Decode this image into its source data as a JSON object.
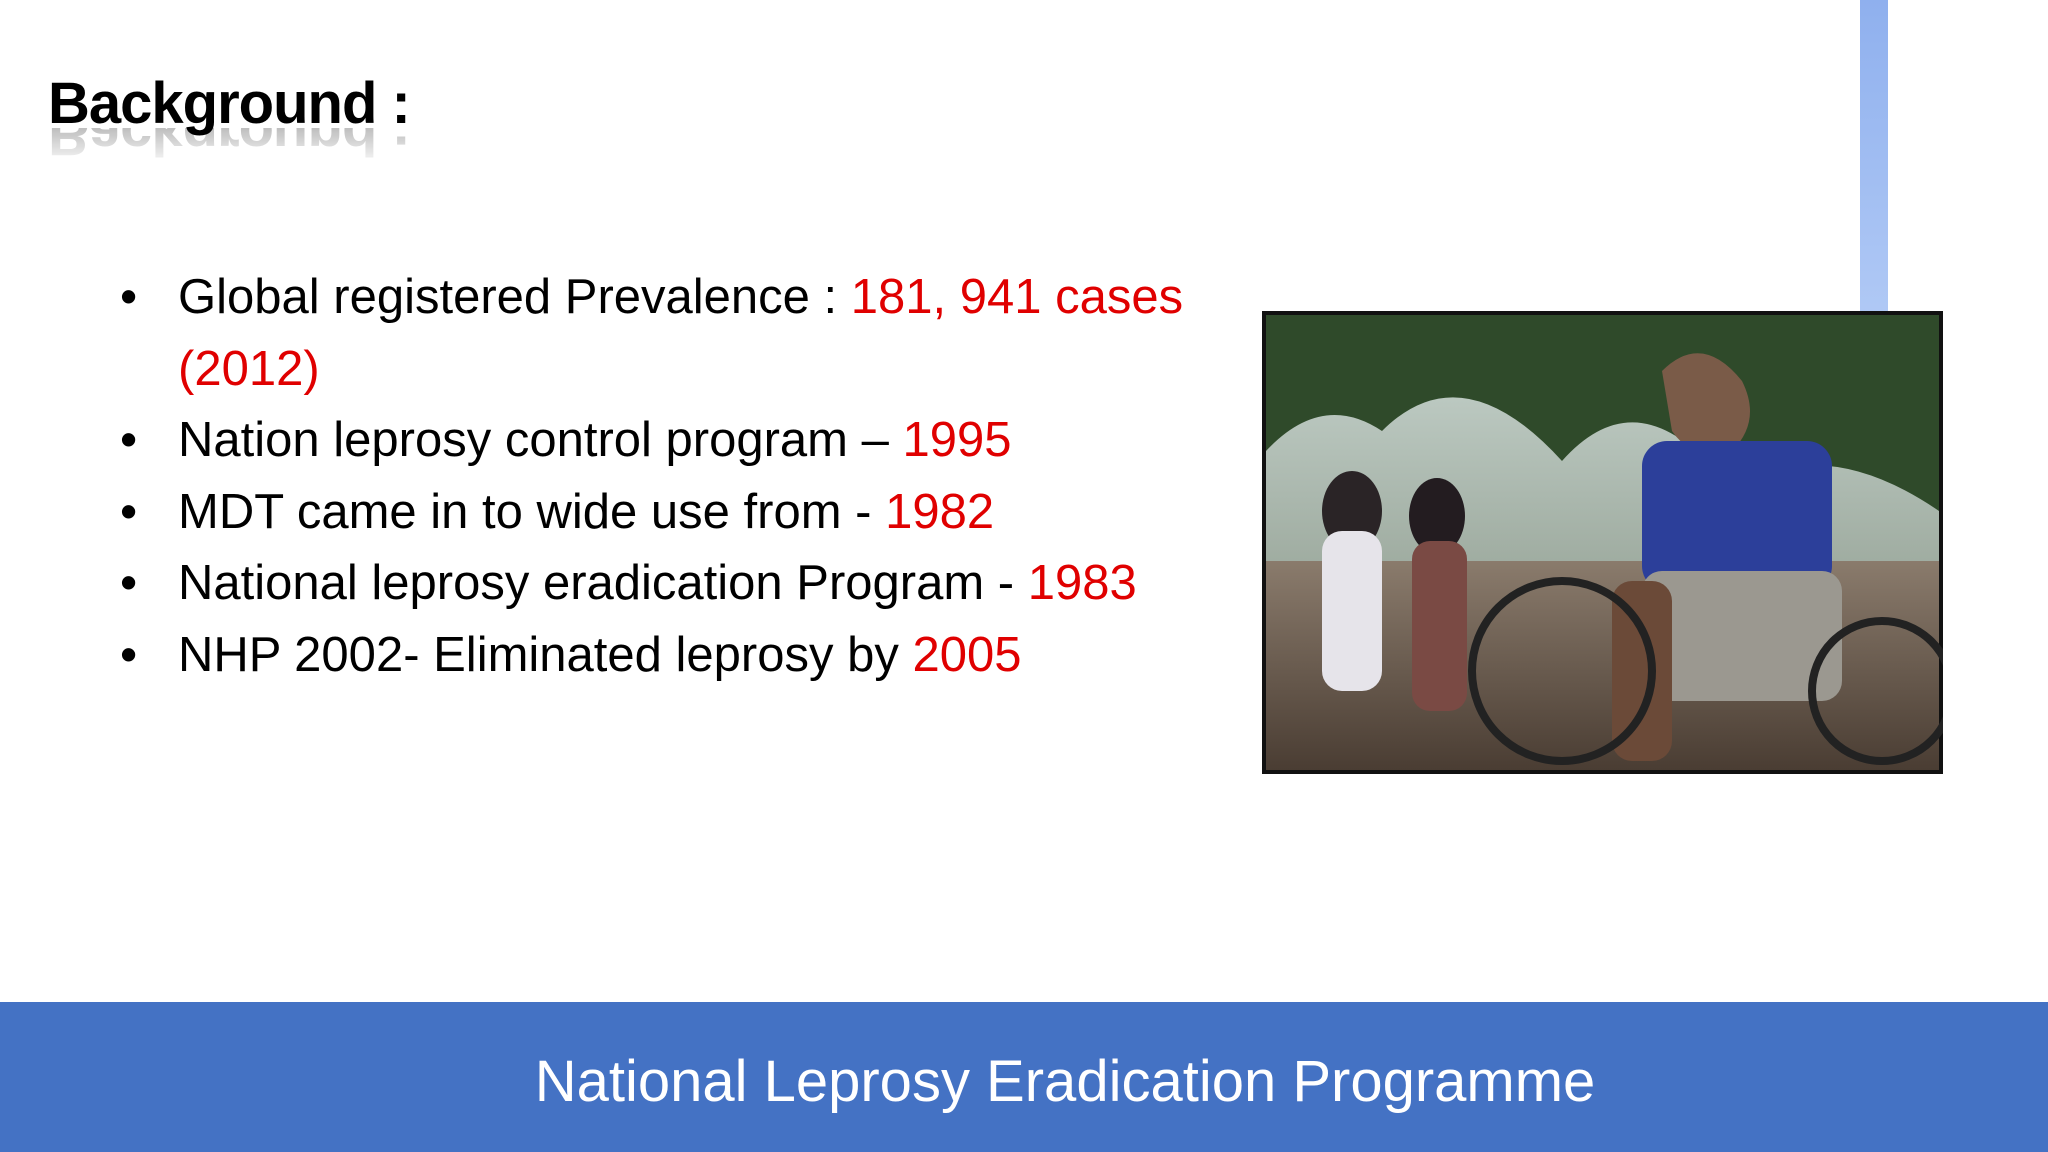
{
  "header": {
    "title": "Background :"
  },
  "bullets": [
    {
      "text": "Global registered Prevalence : ",
      "highlight": "181, 941 cases (2012)"
    },
    {
      "text": "Nation leprosy control program – ",
      "highlight": "1995"
    },
    {
      "text": "MDT came in to wide use from - ",
      "highlight": "1982"
    },
    {
      "text": "National leprosy eradication Program - ",
      "highlight": "1983"
    },
    {
      "text": "NHP 2002- Eliminated leprosy by ",
      "highlight": "2005"
    }
  ],
  "footer": {
    "text": "National Leprosy Eradication Programme"
  }
}
